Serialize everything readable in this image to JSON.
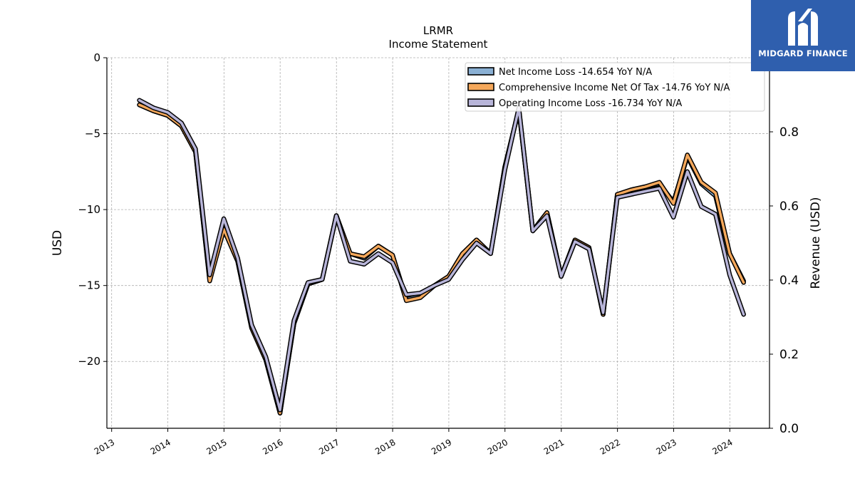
{
  "chart_data": {
    "type": "line",
    "title": "LRMR",
    "subtitle": "Income Statement",
    "ylabel": "USD",
    "y2label": "Revenue (USD)",
    "ylim": [
      -24.4,
      0
    ],
    "y2lim": [
      0,
      1
    ],
    "yticks": [
      0,
      -5,
      -10,
      -15,
      -20
    ],
    "y2ticks": [
      0.0,
      0.2,
      0.4,
      0.6,
      0.8
    ],
    "xlim": [
      "2012-12-01",
      "2024-09-15"
    ],
    "xticks": [
      "2013",
      "2014",
      "2015",
      "2016",
      "2017",
      "2018",
      "2019",
      "2020",
      "2021",
      "2022",
      "2023",
      "2024"
    ],
    "grid": true,
    "legend_position": "top-right",
    "x": [
      "2013-06-30",
      "2013-09-30",
      "2013-12-31",
      "2014-03-31",
      "2014-06-30",
      "2014-09-30",
      "2014-12-31",
      "2015-03-31",
      "2015-06-30",
      "2015-09-30",
      "2015-12-31",
      "2016-03-31",
      "2016-06-30",
      "2016-09-30",
      "2016-12-31",
      "2017-03-31",
      "2017-06-30",
      "2017-09-30",
      "2017-12-31",
      "2018-03-31",
      "2018-06-30",
      "2018-09-30",
      "2018-12-31",
      "2019-03-31",
      "2019-06-30",
      "2019-09-30",
      "2019-12-31",
      "2020-03-31",
      "2020-06-30",
      "2020-09-30",
      "2020-12-31",
      "2021-03-31",
      "2021-06-30",
      "2021-09-30",
      "2021-12-31",
      "2022-03-31",
      "2022-06-30",
      "2022-09-30",
      "2022-12-31",
      "2023-03-31",
      "2023-06-30",
      "2023-09-30",
      "2023-12-31",
      "2024-03-31"
    ],
    "series": [
      {
        "name": "Net Income Loss  -14.654 YoY N/A",
        "color": "#8ab0d4",
        "values": [
          -3.1,
          -3.5,
          -3.8,
          -4.5,
          -6.2,
          -14.6,
          -11.3,
          -13.4,
          -17.8,
          -19.9,
          -23.4,
          -17.5,
          -14.9,
          -14.6,
          -10.4,
          -12.9,
          -13.2,
          -12.4,
          -13.0,
          -15.9,
          -15.7,
          -15.0,
          -14.4,
          -12.9,
          -12.0,
          -12.9,
          -7.2,
          -3.4,
          -11.4,
          -10.2,
          -14.4,
          -12.0,
          -12.5,
          -16.9,
          -9.0,
          -8.7,
          -8.5,
          -8.3,
          -9.5,
          -6.5,
          -8.3,
          -9.1,
          -12.9,
          -14.7
        ]
      },
      {
        "name": "Comprehensive Income Net Of Tax  -14.76 YoY N/A",
        "color": "#f5a85b",
        "values": [
          -3.1,
          -3.5,
          -3.8,
          -4.5,
          -6.2,
          -14.7,
          -11.3,
          -13.4,
          -17.8,
          -19.9,
          -23.4,
          -17.5,
          -14.9,
          -14.6,
          -10.4,
          -12.9,
          -13.1,
          -12.4,
          -13.0,
          -16.0,
          -15.8,
          -15.0,
          -14.4,
          -12.9,
          -12.0,
          -12.9,
          -7.2,
          -3.4,
          -11.4,
          -10.2,
          -14.4,
          -12.0,
          -12.5,
          -16.9,
          -9.0,
          -8.7,
          -8.5,
          -8.2,
          -9.6,
          -6.4,
          -8.2,
          -8.9,
          -12.9,
          -14.8
        ]
      },
      {
        "name": "Operating Income Loss  -16.734 YoY N/A",
        "color": "#b8b5d9",
        "values": [
          -2.8,
          -3.3,
          -3.6,
          -4.3,
          -6.0,
          -14.3,
          -10.6,
          -13.2,
          -17.6,
          -19.7,
          -23.2,
          -17.3,
          -14.8,
          -14.6,
          -10.4,
          -13.4,
          -13.6,
          -12.9,
          -13.5,
          -15.6,
          -15.5,
          -15.0,
          -14.6,
          -13.3,
          -12.2,
          -12.9,
          -7.4,
          -3.3,
          -11.4,
          -10.4,
          -14.4,
          -12.1,
          -12.6,
          -16.8,
          -9.2,
          -9.0,
          -8.8,
          -8.6,
          -10.5,
          -7.5,
          -9.8,
          -10.3,
          -14.3,
          -16.9
        ]
      }
    ]
  },
  "logo": {
    "text": "MIDGARD FINANCE"
  }
}
